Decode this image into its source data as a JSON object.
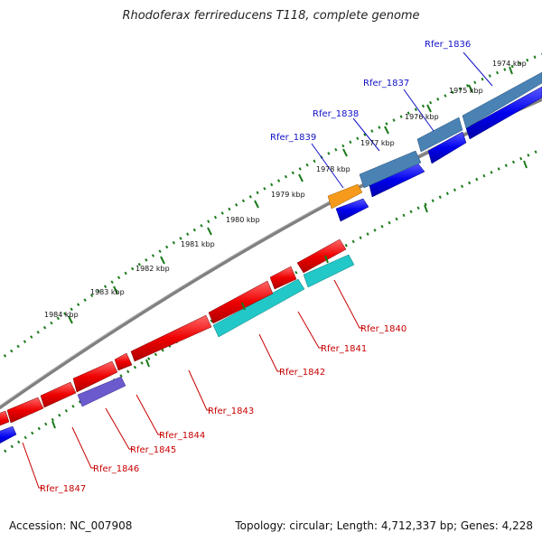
{
  "title": "Rhodoferax ferrireducens T118, complete genome",
  "footer": {
    "accession": "Accession: NC_007908",
    "summary": "Topology: circular; Length: 4,712,337 bp; Genes: 4,228"
  },
  "scale_labels": [
    "1974 kbp",
    "1975 kbp",
    "1976 kbp",
    "1977 kbp",
    "1978 kbp",
    "1979 kbp",
    "1980 kbp",
    "1981 kbp",
    "1982 kbp",
    "1983 kbp",
    "1984 kbp"
  ],
  "forward_genes": [
    "Rfer_1836",
    "Rfer_1837",
    "Rfer_1838",
    "Rfer_1839"
  ],
  "reverse_genes": [
    "Rfer_1840",
    "Rfer_1841",
    "Rfer_1842",
    "Rfer_1843",
    "Rfer_1844",
    "Rfer_1845",
    "Rfer_1846",
    "Rfer_1847"
  ],
  "colors": {
    "forward_label": "#1010c8",
    "reverse_label": "#c80000",
    "cds_forward": "#0000ee",
    "cds_reverse": "#ee0000",
    "gene_steelblue": "#4a82b4",
    "gene_orange": "#f59a1a",
    "gene_cyan": "#22c8c8",
    "gene_purple": "#6a5acd",
    "backbone": "#7a7a7a",
    "tick": "#1a7a1a"
  }
}
